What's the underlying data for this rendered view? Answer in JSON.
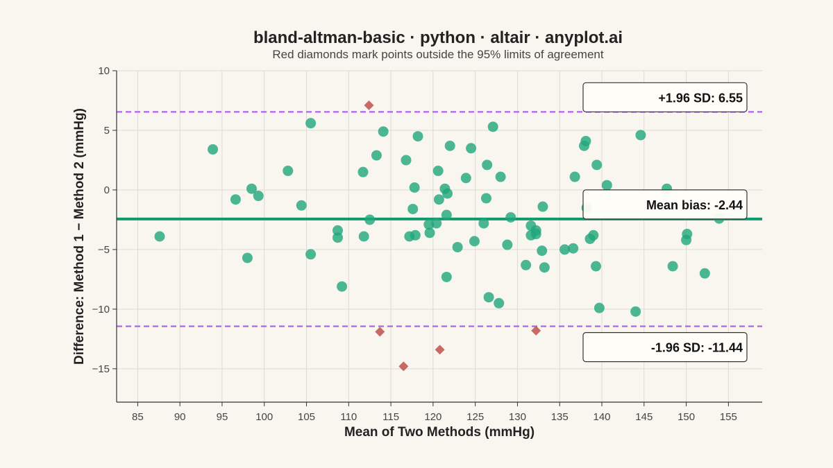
{
  "chart_data": {
    "type": "scatter",
    "title": "bland-altman-basic · python · altair · anyplot.ai",
    "subtitle": "Red diamonds mark points outside the 95% limits of agreement",
    "xlabel": "Mean of Two Methods (mmHg)",
    "ylabel": "Difference: Method 1 − Method 2 (mmHg)",
    "xlim": [
      82.5,
      159
    ],
    "ylim": [
      -17.8,
      10
    ],
    "x_ticks": [
      85,
      90,
      95,
      100,
      105,
      110,
      115,
      120,
      125,
      130,
      135,
      140,
      145,
      150,
      155
    ],
    "y_ticks": [
      10,
      5,
      0,
      -5,
      -10,
      -15
    ],
    "x_tick_labels": [
      "85",
      "90",
      "95",
      "100",
      "105",
      "110",
      "115",
      "120",
      "125",
      "130",
      "135",
      "140",
      "145",
      "150",
      "155"
    ],
    "y_tick_labels": [
      "10",
      "5",
      "0",
      "−5",
      "−10",
      "−15"
    ],
    "grid": true,
    "mean_bias": -2.44,
    "upper_loa": 6.55,
    "lower_loa": -11.44,
    "mean_label": "Mean bias: -2.44",
    "upper_label": "+1.96 SD: 6.55",
    "lower_label": "-1.96 SD: -11.44",
    "colors": {
      "inlier": "#1FA67A",
      "outlier": "#C0504D",
      "mean_line": "#0E9A6E",
      "loa_line": "#B570F0",
      "grid": "#DDDAD3",
      "axis": "#333333"
    },
    "points": [
      {
        "x": 87.6,
        "y": -3.9
      },
      {
        "x": 93.9,
        "y": 3.4
      },
      {
        "x": 96.6,
        "y": -0.8
      },
      {
        "x": 98.0,
        "y": -5.7
      },
      {
        "x": 98.5,
        "y": 0.1
      },
      {
        "x": 99.3,
        "y": -0.5
      },
      {
        "x": 102.8,
        "y": 1.6
      },
      {
        "x": 104.4,
        "y": -1.3
      },
      {
        "x": 105.5,
        "y": 5.6
      },
      {
        "x": 105.5,
        "y": -5.4
      },
      {
        "x": 108.7,
        "y": -3.4
      },
      {
        "x": 108.7,
        "y": -4.0
      },
      {
        "x": 109.2,
        "y": -8.1
      },
      {
        "x": 111.7,
        "y": 1.5
      },
      {
        "x": 111.8,
        "y": -3.9
      },
      {
        "x": 112.5,
        "y": -2.5
      },
      {
        "x": 113.3,
        "y": 2.9
      },
      {
        "x": 114.1,
        "y": 4.9
      },
      {
        "x": 116.8,
        "y": 2.5
      },
      {
        "x": 117.2,
        "y": -3.9
      },
      {
        "x": 117.6,
        "y": -1.6
      },
      {
        "x": 117.8,
        "y": 0.2
      },
      {
        "x": 117.9,
        "y": -3.8
      },
      {
        "x": 118.2,
        "y": 4.5
      },
      {
        "x": 119.5,
        "y": -2.9
      },
      {
        "x": 119.6,
        "y": -3.6
      },
      {
        "x": 120.4,
        "y": -2.8
      },
      {
        "x": 120.6,
        "y": 1.6
      },
      {
        "x": 120.7,
        "y": -0.8
      },
      {
        "x": 121.4,
        "y": 0.1
      },
      {
        "x": 121.6,
        "y": -2.1
      },
      {
        "x": 121.6,
        "y": -7.3
      },
      {
        "x": 121.7,
        "y": -0.3
      },
      {
        "x": 122.0,
        "y": 3.7
      },
      {
        "x": 122.9,
        "y": -4.8
      },
      {
        "x": 123.9,
        "y": 1.0
      },
      {
        "x": 124.5,
        "y": 3.5
      },
      {
        "x": 124.9,
        "y": -4.3
      },
      {
        "x": 126.0,
        "y": -2.8
      },
      {
        "x": 126.3,
        "y": -0.7
      },
      {
        "x": 126.4,
        "y": 2.1
      },
      {
        "x": 126.6,
        "y": -9.0
      },
      {
        "x": 127.1,
        "y": 5.3
      },
      {
        "x": 127.8,
        "y": -9.5
      },
      {
        "x": 128.0,
        "y": 1.1
      },
      {
        "x": 128.8,
        "y": -4.6
      },
      {
        "x": 129.2,
        "y": -2.3
      },
      {
        "x": 131.0,
        "y": -6.3
      },
      {
        "x": 131.6,
        "y": -3.0
      },
      {
        "x": 131.6,
        "y": -3.8
      },
      {
        "x": 132.2,
        "y": -3.4
      },
      {
        "x": 132.2,
        "y": -3.7
      },
      {
        "x": 132.9,
        "y": -5.1
      },
      {
        "x": 133.0,
        "y": -1.4
      },
      {
        "x": 133.2,
        "y": -6.5
      },
      {
        "x": 135.6,
        "y": -5.0
      },
      {
        "x": 136.6,
        "y": -4.9
      },
      {
        "x": 136.8,
        "y": 1.1
      },
      {
        "x": 137.9,
        "y": 3.7
      },
      {
        "x": 138.1,
        "y": 4.1
      },
      {
        "x": 138.2,
        "y": -1.5
      },
      {
        "x": 138.6,
        "y": -4.1
      },
      {
        "x": 139.0,
        "y": -3.8
      },
      {
        "x": 139.3,
        "y": -6.4
      },
      {
        "x": 139.4,
        "y": 2.1
      },
      {
        "x": 139.7,
        "y": -9.9
      },
      {
        "x": 140.6,
        "y": 0.4
      },
      {
        "x": 144.0,
        "y": -10.2
      },
      {
        "x": 144.6,
        "y": 4.6
      },
      {
        "x": 147.7,
        "y": 0.1
      },
      {
        "x": 148.4,
        "y": -6.4
      },
      {
        "x": 150.0,
        "y": -4.2
      },
      {
        "x": 150.1,
        "y": -3.7
      },
      {
        "x": 152.2,
        "y": -7.0
      },
      {
        "x": 153.9,
        "y": -2.4
      }
    ],
    "outliers": [
      {
        "x": 112.4,
        "y": 7.1
      },
      {
        "x": 113.7,
        "y": -11.9
      },
      {
        "x": 116.5,
        "y": -14.8
      },
      {
        "x": 120.8,
        "y": -13.4
      },
      {
        "x": 132.2,
        "y": -11.8
      }
    ]
  }
}
